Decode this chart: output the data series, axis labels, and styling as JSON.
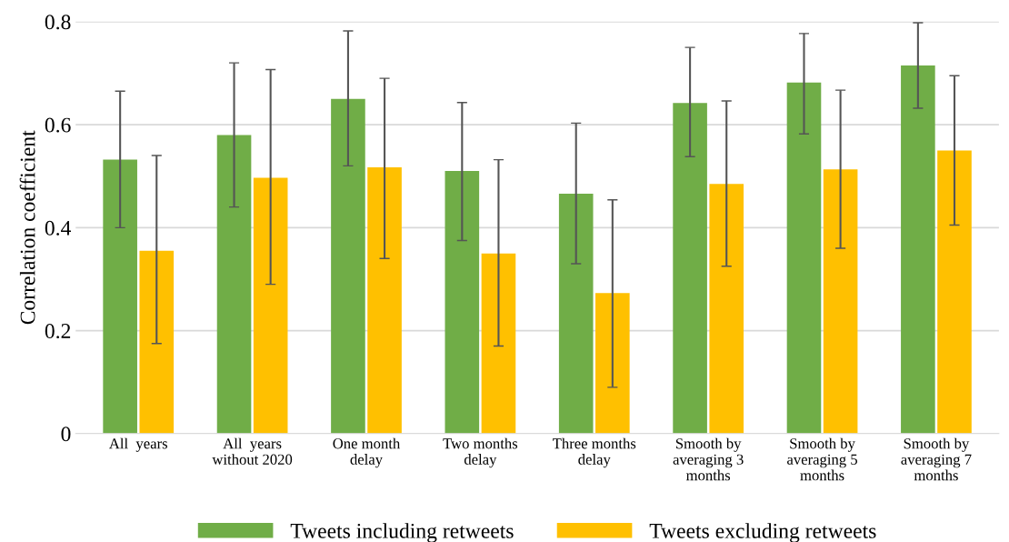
{
  "chart_data": {
    "type": "bar",
    "ylabel": "Correlation coefficient",
    "categories": [
      "All  years",
      "All  years\nwithout 2020",
      "One month\ndelay",
      "Two months\ndelay",
      "Three months\ndelay",
      "Smooth by\naveraging 3\nmonths",
      "Smooth by\naveraging 5\nmonths",
      "Smooth by\naveraging 7\nmonths"
    ],
    "series": [
      {
        "name": "Tweets including retweets",
        "color": "#70ad47",
        "values": [
          0.532,
          0.58,
          0.65,
          0.51,
          0.466,
          0.642,
          0.682,
          0.715
        ],
        "errors": [
          [
            0.4,
            0.665
          ],
          [
            0.44,
            0.72
          ],
          [
            0.52,
            0.782
          ],
          [
            0.375,
            0.643
          ],
          [
            0.33,
            0.603
          ],
          [
            0.538,
            0.75
          ],
          [
            0.582,
            0.777
          ],
          [
            0.632,
            0.798
          ]
        ]
      },
      {
        "name": "Tweets excluding retweets",
        "color": "#ffc000",
        "values": [
          0.355,
          0.497,
          0.517,
          0.35,
          0.273,
          0.485,
          0.513,
          0.55
        ],
        "errors": [
          [
            0.175,
            0.54
          ],
          [
            0.29,
            0.707
          ],
          [
            0.34,
            0.69
          ],
          [
            0.17,
            0.532
          ],
          [
            0.09,
            0.454
          ],
          [
            0.325,
            0.646
          ],
          [
            0.36,
            0.667
          ],
          [
            0.405,
            0.695
          ]
        ]
      }
    ],
    "ylim": [
      0,
      0.8
    ],
    "yticks": [
      0,
      0.2,
      0.4,
      0.6,
      0.8
    ],
    "grid": "y",
    "legend": "bottom"
  }
}
